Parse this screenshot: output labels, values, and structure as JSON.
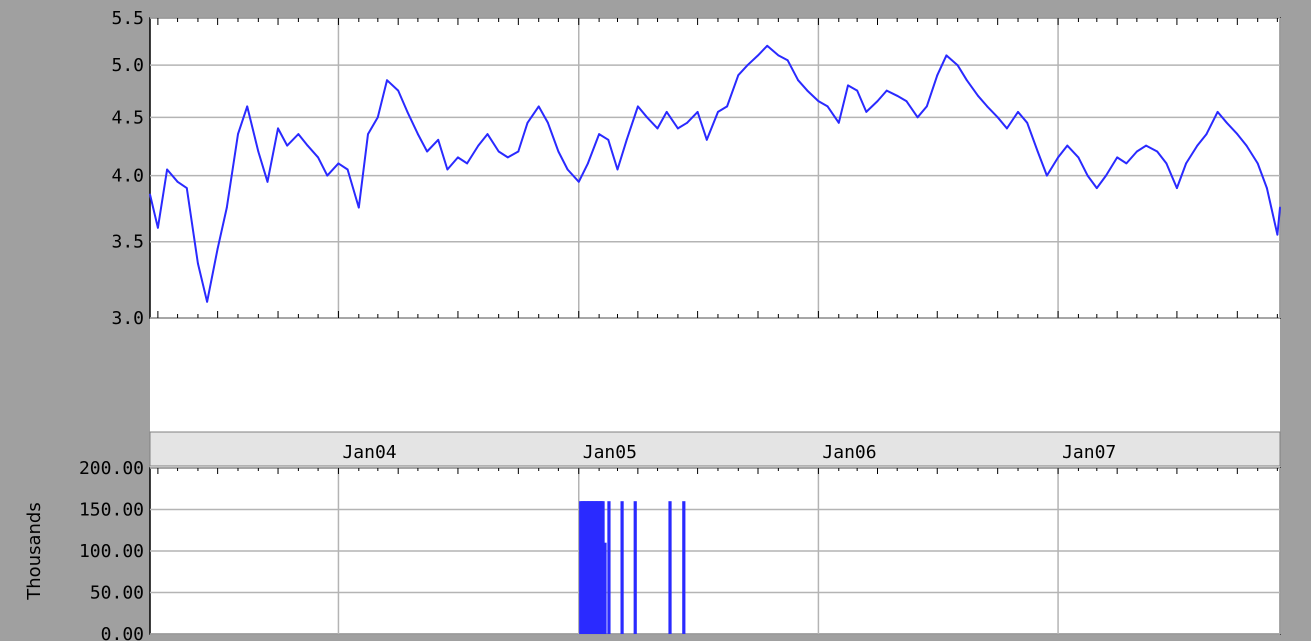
{
  "colors": {
    "frame": "#a0a0a0",
    "series": "#2a2aff",
    "grid": "#b4b4b4",
    "band": "#e4e4e4",
    "plot_bg": "#ffffff"
  },
  "chart_data": [
    {
      "type": "line",
      "title": "",
      "xlabel": "",
      "ylabel": "",
      "xlim": [
        "2003-03-20",
        "2007-12-05"
      ],
      "ylim": [
        3.0,
        5.5
      ],
      "yscale": "log",
      "grid": true,
      "y_ticks": [
        "3.0",
        "3.5",
        "4.0",
        "4.5",
        "5.0",
        "5.5"
      ],
      "x_tick_labels": [
        {
          "date": "2004-01-01",
          "label": "Jan04"
        },
        {
          "date": "2005-01-01",
          "label": "Jan05"
        },
        {
          "date": "2006-01-01",
          "label": "Jan06"
        },
        {
          "date": "2007-01-01",
          "label": "Jan07"
        }
      ],
      "series": [
        {
          "x": [
            "2003-03-20",
            "2003-04-01",
            "2003-04-15",
            "2003-05-01",
            "2003-05-15",
            "2003-06-01",
            "2003-06-15",
            "2003-07-01",
            "2003-07-15",
            "2003-08-01",
            "2003-08-15",
            "2003-09-01",
            "2003-09-15",
            "2003-10-01",
            "2003-10-15",
            "2003-11-01",
            "2003-11-15",
            "2003-12-01",
            "2003-12-15",
            "2004-01-01",
            "2004-01-15",
            "2004-02-01",
            "2004-02-15",
            "2004-03-01",
            "2004-03-15",
            "2004-04-01",
            "2004-04-15",
            "2004-05-01",
            "2004-05-15",
            "2004-06-01",
            "2004-06-15",
            "2004-07-01",
            "2004-07-15",
            "2004-08-01",
            "2004-08-15",
            "2004-09-01",
            "2004-09-15",
            "2004-10-01",
            "2004-10-15",
            "2004-11-01",
            "2004-11-15",
            "2004-12-01",
            "2004-12-15",
            "2005-01-01",
            "2005-01-15",
            "2005-02-01",
            "2005-02-15",
            "2005-03-01",
            "2005-03-15",
            "2005-04-01",
            "2005-04-15",
            "2005-05-01",
            "2005-05-15",
            "2005-06-01",
            "2005-06-15",
            "2005-07-01",
            "2005-07-15",
            "2005-08-01",
            "2005-08-15",
            "2005-09-01",
            "2005-09-15",
            "2005-10-01",
            "2005-10-15",
            "2005-11-01",
            "2005-11-15",
            "2005-12-01",
            "2005-12-15",
            "2006-01-01",
            "2006-01-15",
            "2006-02-01",
            "2006-02-15",
            "2006-03-01",
            "2006-03-15",
            "2006-04-01",
            "2006-04-15",
            "2006-05-01",
            "2006-05-15",
            "2006-06-01",
            "2006-06-15",
            "2006-07-01",
            "2006-07-15",
            "2006-08-01",
            "2006-08-15",
            "2006-09-01",
            "2006-09-15",
            "2006-10-01",
            "2006-10-15",
            "2006-11-01",
            "2006-11-15",
            "2006-12-01",
            "2006-12-15",
            "2007-01-01",
            "2007-01-15",
            "2007-02-01",
            "2007-02-15",
            "2007-03-01",
            "2007-03-15",
            "2007-04-01",
            "2007-04-15",
            "2007-05-01",
            "2007-05-15",
            "2007-06-01",
            "2007-06-15",
            "2007-07-01",
            "2007-07-15",
            "2007-08-01",
            "2007-08-15",
            "2007-09-01",
            "2007-09-15",
            "2007-10-01",
            "2007-10-15",
            "2007-11-01",
            "2007-11-15",
            "2007-12-01",
            "2007-12-05"
          ],
          "y": [
            3.85,
            3.6,
            4.05,
            3.95,
            3.9,
            3.35,
            3.1,
            3.45,
            3.75,
            4.35,
            4.6,
            4.2,
            3.95,
            4.4,
            4.25,
            4.35,
            4.25,
            4.15,
            4.0,
            4.1,
            4.05,
            3.75,
            4.35,
            4.5,
            4.85,
            4.75,
            4.55,
            4.35,
            4.2,
            4.3,
            4.05,
            4.15,
            4.1,
            4.25,
            4.35,
            4.2,
            4.15,
            4.2,
            4.45,
            4.6,
            4.45,
            4.2,
            4.05,
            3.95,
            4.1,
            4.35,
            4.3,
            4.05,
            4.3,
            4.6,
            4.5,
            4.4,
            4.55,
            4.4,
            4.45,
            4.55,
            4.3,
            4.55,
            4.6,
            4.9,
            5.0,
            5.1,
            5.2,
            5.1,
            5.05,
            4.85,
            4.75,
            4.65,
            4.6,
            4.45,
            4.8,
            4.75,
            4.55,
            4.65,
            4.75,
            4.7,
            4.65,
            4.5,
            4.6,
            4.9,
            5.1,
            5.0,
            4.85,
            4.7,
            4.6,
            4.5,
            4.4,
            4.55,
            4.45,
            4.2,
            4.0,
            4.15,
            4.25,
            4.15,
            4.0,
            3.9,
            4.0,
            4.15,
            4.1,
            4.2,
            4.25,
            4.2,
            4.1,
            3.9,
            4.1,
            4.25,
            4.35,
            4.55,
            4.45,
            4.35,
            4.25,
            4.1,
            3.9,
            3.55,
            3.75
          ]
        }
      ]
    },
    {
      "type": "bar",
      "title": "",
      "xlabel": "",
      "ylabel": "Thousands",
      "ylim": [
        0,
        200
      ],
      "grid": true,
      "y_ticks": [
        "0.00",
        "50.00",
        "100.00",
        "150.00",
        "200.00"
      ],
      "series": [
        {
          "x": [
            "2005-01-04",
            "2005-01-06",
            "2005-01-08",
            "2005-01-10",
            "2005-01-12",
            "2005-01-14",
            "2005-01-16",
            "2005-01-18",
            "2005-01-20",
            "2005-01-22",
            "2005-01-24",
            "2005-01-26",
            "2005-01-28",
            "2005-01-30",
            "2005-02-01",
            "2005-02-03",
            "2005-02-05",
            "2005-02-07",
            "2005-02-10",
            "2005-02-16",
            "2005-03-08",
            "2005-03-28",
            "2005-05-20",
            "2005-06-10"
          ],
          "values": [
            160,
            160,
            160,
            160,
            160,
            160,
            160,
            160,
            160,
            160,
            160,
            160,
            160,
            160,
            160,
            160,
            160,
            160,
            110,
            160,
            160,
            160,
            160,
            160
          ]
        }
      ]
    }
  ]
}
